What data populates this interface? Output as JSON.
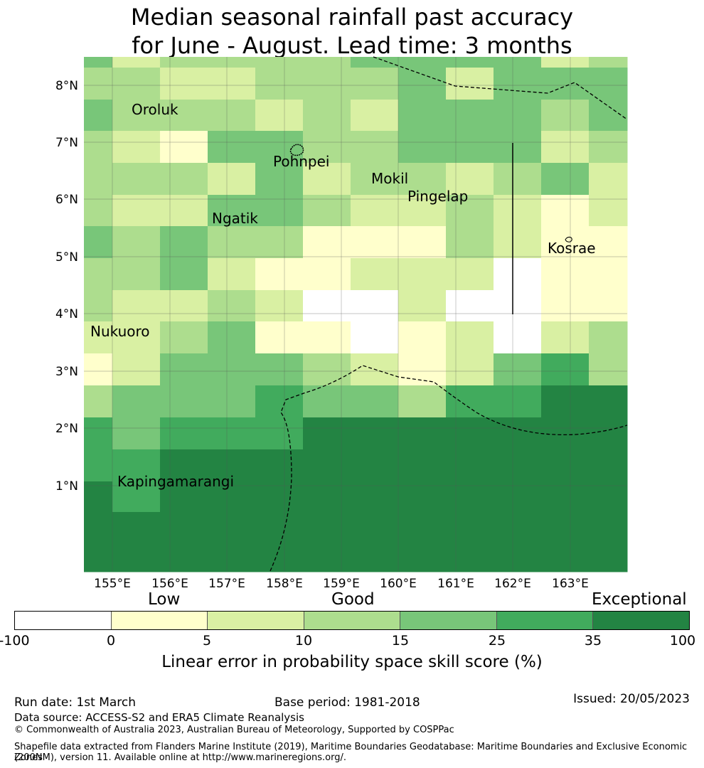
{
  "title_line1": "Median seasonal rainfall past accuracy",
  "title_line2": "for June - August. Lead time: 3 months",
  "map": {
    "lon_labels": [
      "155°E",
      "156°E",
      "157°E",
      "158°E",
      "159°E",
      "160°E",
      "161°E",
      "162°E",
      "163°E"
    ],
    "lat_labels": [
      "8°N",
      "7°N",
      "6°N",
      "5°N",
      "4°N",
      "3°N",
      "2°N",
      "1°N"
    ],
    "places": [
      "Oroluk",
      "Pohnpei",
      "Mokil",
      "Pingelap",
      "Ngatik",
      "Kosrae",
      "Nukuoro",
      "Kapingamarangi"
    ]
  },
  "legend": {
    "class_low": "Low",
    "class_good": "Good",
    "class_exceptional": "Exceptional",
    "ticks": [
      "-100",
      "0",
      "5",
      "10",
      "15",
      "25",
      "35",
      "100"
    ],
    "colors": [
      "#ffffff",
      "#ffffcc",
      "#d9f0a3",
      "#addd8e",
      "#78c679",
      "#41ab5d",
      "#238443"
    ],
    "title": "Linear error in probability space skill score (%)"
  },
  "footer": {
    "run_date": "Run date: 1st March",
    "base_period": "Base period: 1981-2018",
    "issued": "Issued: 20/05/2023",
    "data_source": "Data source: ACCESS-S2 and ERA5 Climate Reanalysis",
    "copyright": "© Commonwealth of Australia 2023, Australian Bureau of Meteorology, Supported by COSPPac",
    "shapefile_line1": "Shapefile data extracted from Flanders Marine Institute (2019), Maritime Boundaries Geodatabase: Maritime Boundaries and Exclusive Economic Zones",
    "shapefile_line2": "(200NM), version 11. Available online at http://www.marineregions.org/."
  }
}
